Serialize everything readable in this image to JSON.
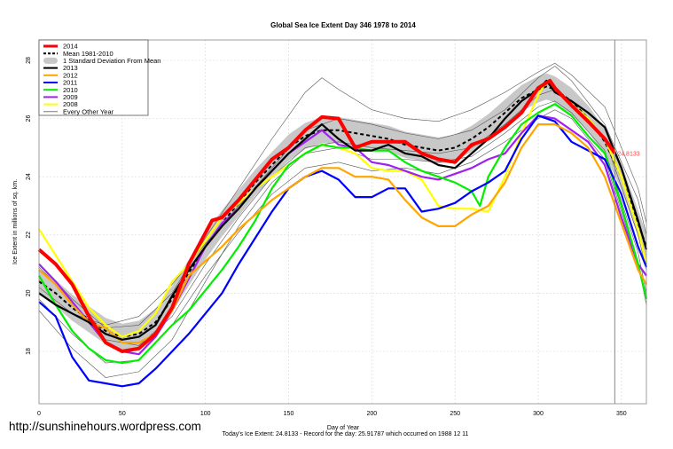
{
  "chart_data": {
    "type": "line",
    "title": "Global Sea Ice Extent Day 346 1978 to 2014",
    "xlabel": "Day of Year",
    "ylabel": "Ice Extent in millions of sq. km.",
    "xlim": [
      0,
      365
    ],
    "ylim": [
      16.2,
      28.7
    ],
    "xticks": [
      0,
      50,
      100,
      150,
      200,
      250,
      300,
      350
    ],
    "yticks": [
      18,
      20,
      22,
      24,
      26,
      28
    ],
    "grid": true,
    "legend_position": "top-left",
    "current_day": 346,
    "current_value_label": "24.8133",
    "legend": [
      "2014",
      "Mean 1981-2010",
      "1 Standard Deviation From Mean",
      "2013",
      "2012",
      "2011",
      "2010",
      "2009",
      "2008",
      "Every Other Year"
    ],
    "colors": {
      "2014": "#ff0000",
      "mean": "#000000",
      "std": "#c8c8c8",
      "2013": "#000000",
      "2012": "#ffa500",
      "2011": "#0000ff",
      "2010": "#00ee00",
      "2009": "#a020f0",
      "2008": "#ffff00",
      "other": "#555555"
    },
    "mean": {
      "x": [
        0,
        10,
        20,
        30,
        40,
        50,
        60,
        70,
        80,
        90,
        100,
        110,
        120,
        130,
        140,
        150,
        160,
        170,
        180,
        190,
        200,
        210,
        220,
        230,
        240,
        250,
        260,
        270,
        280,
        290,
        300,
        305,
        310,
        320,
        330,
        340,
        350,
        360,
        365
      ],
      "y": [
        20.4,
        20.0,
        19.5,
        19.1,
        18.7,
        18.5,
        18.6,
        19.0,
        19.8,
        20.7,
        21.6,
        22.4,
        23.1,
        23.8,
        24.4,
        25.0,
        25.4,
        25.6,
        25.6,
        25.5,
        25.4,
        25.3,
        25.1,
        25.0,
        24.9,
        25.0,
        25.3,
        25.7,
        26.2,
        26.7,
        27.0,
        27.1,
        27.0,
        26.6,
        26.0,
        25.2,
        24.0,
        22.4,
        21.6
      ],
      "std": 0.45
    },
    "series": [
      {
        "name": "2014",
        "x": [
          0,
          10,
          20,
          30,
          40,
          50,
          60,
          70,
          80,
          90,
          104,
          110,
          120,
          130,
          140,
          150,
          160,
          170,
          180,
          190,
          200,
          210,
          220,
          230,
          240,
          250,
          260,
          270,
          280,
          290,
          300,
          307,
          310,
          320,
          330,
          340,
          346
        ],
        "y": [
          21.5,
          21.0,
          20.3,
          19.2,
          18.3,
          18.0,
          18.1,
          18.6,
          19.5,
          21.0,
          22.5,
          22.6,
          23.2,
          23.9,
          24.6,
          25.0,
          25.6,
          26.05,
          26.0,
          25.0,
          25.2,
          25.2,
          25.2,
          24.8,
          24.6,
          24.5,
          25.1,
          25.3,
          25.7,
          26.2,
          27.05,
          27.3,
          27.05,
          26.45,
          25.9,
          25.3,
          24.81
        ]
      },
      {
        "name": "2013",
        "x": [
          0,
          10,
          20,
          30,
          40,
          50,
          60,
          70,
          80,
          90,
          100,
          110,
          120,
          130,
          140,
          150,
          160,
          170,
          180,
          190,
          200,
          210,
          220,
          230,
          240,
          250,
          260,
          270,
          280,
          290,
          300,
          305,
          310,
          320,
          330,
          340,
          350,
          360,
          365
        ],
        "y": [
          20.0,
          19.6,
          19.3,
          19.0,
          18.6,
          18.4,
          18.5,
          18.9,
          19.9,
          20.8,
          21.6,
          22.3,
          22.9,
          23.6,
          24.2,
          24.8,
          25.3,
          25.8,
          25.3,
          24.9,
          24.9,
          25.1,
          24.8,
          24.7,
          24.4,
          24.3,
          24.8,
          25.3,
          26.0,
          26.6,
          27.0,
          27.3,
          26.9,
          26.6,
          26.2,
          25.7,
          24.3,
          22.5,
          21.5
        ]
      },
      {
        "name": "2012",
        "x": [
          0,
          10,
          20,
          30,
          40,
          50,
          60,
          70,
          80,
          90,
          100,
          110,
          120,
          130,
          140,
          150,
          160,
          170,
          180,
          190,
          200,
          210,
          220,
          230,
          240,
          250,
          260,
          270,
          280,
          290,
          300,
          310,
          320,
          330,
          340,
          350,
          360,
          365
        ],
        "y": [
          20.8,
          20.3,
          19.6,
          19.0,
          18.8,
          18.3,
          18.3,
          18.6,
          19.4,
          20.6,
          21.1,
          21.6,
          22.2,
          22.7,
          23.2,
          23.6,
          24.0,
          24.3,
          24.3,
          24.0,
          24.0,
          23.9,
          23.2,
          22.6,
          22.3,
          22.3,
          22.7,
          23.0,
          23.8,
          25.0,
          25.8,
          25.8,
          25.5,
          25.0,
          24.0,
          22.4,
          20.8,
          20.3
        ]
      },
      {
        "name": "2011",
        "x": [
          0,
          10,
          20,
          30,
          40,
          50,
          60,
          70,
          80,
          90,
          100,
          110,
          120,
          130,
          140,
          150,
          160,
          170,
          180,
          190,
          200,
          210,
          220,
          230,
          240,
          250,
          260,
          270,
          280,
          290,
          300,
          310,
          320,
          330,
          340,
          350,
          360,
          365
        ],
        "y": [
          19.7,
          19.2,
          17.8,
          17.0,
          16.9,
          16.8,
          16.9,
          17.4,
          18.0,
          18.6,
          19.3,
          20.0,
          21.0,
          21.9,
          22.8,
          23.6,
          24.0,
          24.2,
          23.9,
          23.3,
          23.3,
          23.6,
          23.6,
          22.8,
          22.9,
          23.1,
          23.5,
          23.8,
          24.2,
          25.3,
          26.1,
          25.9,
          25.2,
          24.9,
          24.6,
          23.4,
          21.6,
          20.9
        ]
      },
      {
        "name": "2010",
        "x": [
          0,
          10,
          20,
          30,
          40,
          50,
          60,
          70,
          80,
          90,
          100,
          110,
          120,
          130,
          140,
          150,
          160,
          170,
          180,
          190,
          200,
          210,
          220,
          230,
          240,
          250,
          260,
          265,
          270,
          280,
          290,
          300,
          310,
          320,
          330,
          340,
          350,
          360,
          365
        ],
        "y": [
          20.6,
          19.6,
          18.7,
          18.1,
          17.7,
          17.6,
          17.7,
          18.3,
          18.9,
          19.4,
          20.1,
          20.8,
          21.6,
          22.5,
          23.6,
          24.4,
          24.8,
          25.1,
          25.0,
          25.0,
          24.9,
          24.9,
          24.5,
          24.2,
          24.0,
          23.8,
          23.5,
          23.0,
          24.0,
          25.0,
          25.8,
          26.2,
          26.5,
          26.1,
          25.4,
          24.8,
          23.0,
          21.0,
          19.8
        ]
      },
      {
        "name": "2009",
        "x": [
          0,
          10,
          20,
          30,
          40,
          50,
          60,
          70,
          80,
          90,
          100,
          110,
          120,
          130,
          140,
          150,
          160,
          170,
          180,
          190,
          200,
          210,
          220,
          230,
          240,
          250,
          260,
          270,
          280,
          290,
          300,
          310,
          320,
          330,
          340,
          350,
          360,
          365
        ],
        "y": [
          21.0,
          20.4,
          19.7,
          19.0,
          18.3,
          18.0,
          17.9,
          18.5,
          19.4,
          20.5,
          21.6,
          22.4,
          22.9,
          23.6,
          24.2,
          24.8,
          25.2,
          25.6,
          25.1,
          25.0,
          24.5,
          24.4,
          24.2,
          24.0,
          23.9,
          24.1,
          24.3,
          24.6,
          24.8,
          25.5,
          26.1,
          26.0,
          25.6,
          25.2,
          24.4,
          22.6,
          21.0,
          20.6
        ]
      },
      {
        "name": "2008",
        "x": [
          0,
          10,
          20,
          30,
          40,
          50,
          60,
          70,
          80,
          90,
          100,
          110,
          120,
          130,
          140,
          150,
          160,
          170,
          180,
          190,
          200,
          210,
          220,
          230,
          240,
          250,
          260,
          270,
          280,
          290,
          300,
          305,
          310,
          320,
          330,
          340,
          350,
          360,
          365
        ],
        "y": [
          22.2,
          21.3,
          20.4,
          19.5,
          18.9,
          18.5,
          18.7,
          19.3,
          20.4,
          21.0,
          21.8,
          22.6,
          23.1,
          23.6,
          24.0,
          24.4,
          24.8,
          25.1,
          25.0,
          24.8,
          24.3,
          24.2,
          24.2,
          23.9,
          23.0,
          22.9,
          22.9,
          22.8,
          24.0,
          25.5,
          26.8,
          27.3,
          27.0,
          26.5,
          26.0,
          25.3,
          24.0,
          22.2,
          21.0
        ]
      }
    ],
    "other_years": [
      {
        "x": [
          0,
          20,
          40,
          60,
          80,
          100,
          120,
          140,
          160,
          170,
          180,
          200,
          220,
          240,
          260,
          280,
          300,
          310,
          320,
          340,
          360,
          365
        ],
        "y": [
          21.0,
          19.8,
          18.8,
          18.9,
          20.0,
          21.9,
          23.6,
          25.3,
          26.9,
          27.4,
          27.0,
          26.3,
          26.0,
          25.9,
          26.3,
          26.9,
          27.6,
          27.9,
          27.5,
          26.4,
          23.6,
          22.4
        ]
      },
      {
        "x": [
          0,
          20,
          40,
          60,
          80,
          100,
          120,
          140,
          160,
          180,
          200,
          220,
          240,
          260,
          280,
          300,
          310,
          320,
          340,
          360,
          365
        ],
        "y": [
          19.4,
          18.1,
          17.1,
          17.3,
          18.4,
          20.4,
          22.3,
          23.8,
          24.8,
          25.0,
          24.6,
          24.6,
          24.5,
          24.7,
          25.5,
          26.4,
          26.6,
          26.2,
          24.9,
          21.4,
          20.0
        ]
      },
      {
        "x": [
          0,
          20,
          40,
          60,
          80,
          100,
          120,
          140,
          160,
          180,
          200,
          220,
          240,
          260,
          280,
          300,
          310,
          320,
          340,
          360,
          365
        ],
        "y": [
          20.2,
          19.3,
          18.9,
          19.2,
          20.3,
          21.7,
          23.0,
          24.3,
          25.6,
          26.0,
          25.8,
          25.5,
          25.3,
          25.6,
          26.3,
          27.4,
          27.8,
          27.3,
          25.8,
          23.2,
          22.0
        ]
      },
      {
        "x": [
          0,
          20,
          40,
          60,
          80,
          100,
          120,
          140,
          160,
          180,
          200,
          220,
          240,
          260,
          280,
          300,
          310,
          320,
          340,
          360,
          365
        ],
        "y": [
          20.9,
          19.7,
          18.4,
          18.2,
          19.2,
          21.0,
          22.6,
          24.0,
          25.0,
          25.2,
          25.0,
          24.9,
          24.8,
          25.0,
          25.8,
          26.8,
          27.0,
          26.6,
          25.3,
          22.0,
          20.8
        ]
      },
      {
        "x": [
          0,
          20,
          40,
          60,
          80,
          100,
          120,
          140,
          160,
          180,
          200,
          220,
          240,
          260,
          280,
          300,
          310,
          320,
          340,
          360,
          365
        ],
        "y": [
          19.8,
          18.6,
          17.6,
          17.7,
          18.9,
          20.6,
          22.1,
          23.4,
          24.3,
          24.5,
          24.2,
          24.3,
          24.1,
          24.5,
          25.2,
          26.0,
          26.3,
          26.0,
          24.6,
          21.0,
          19.6
        ]
      }
    ]
  },
  "watermark": "http://sunshinehours.wordpress.com",
  "footer": "Today's Ice Extent: 24.8133  - Record for the day: 25.91787 which occurred on 1988 12 11"
}
